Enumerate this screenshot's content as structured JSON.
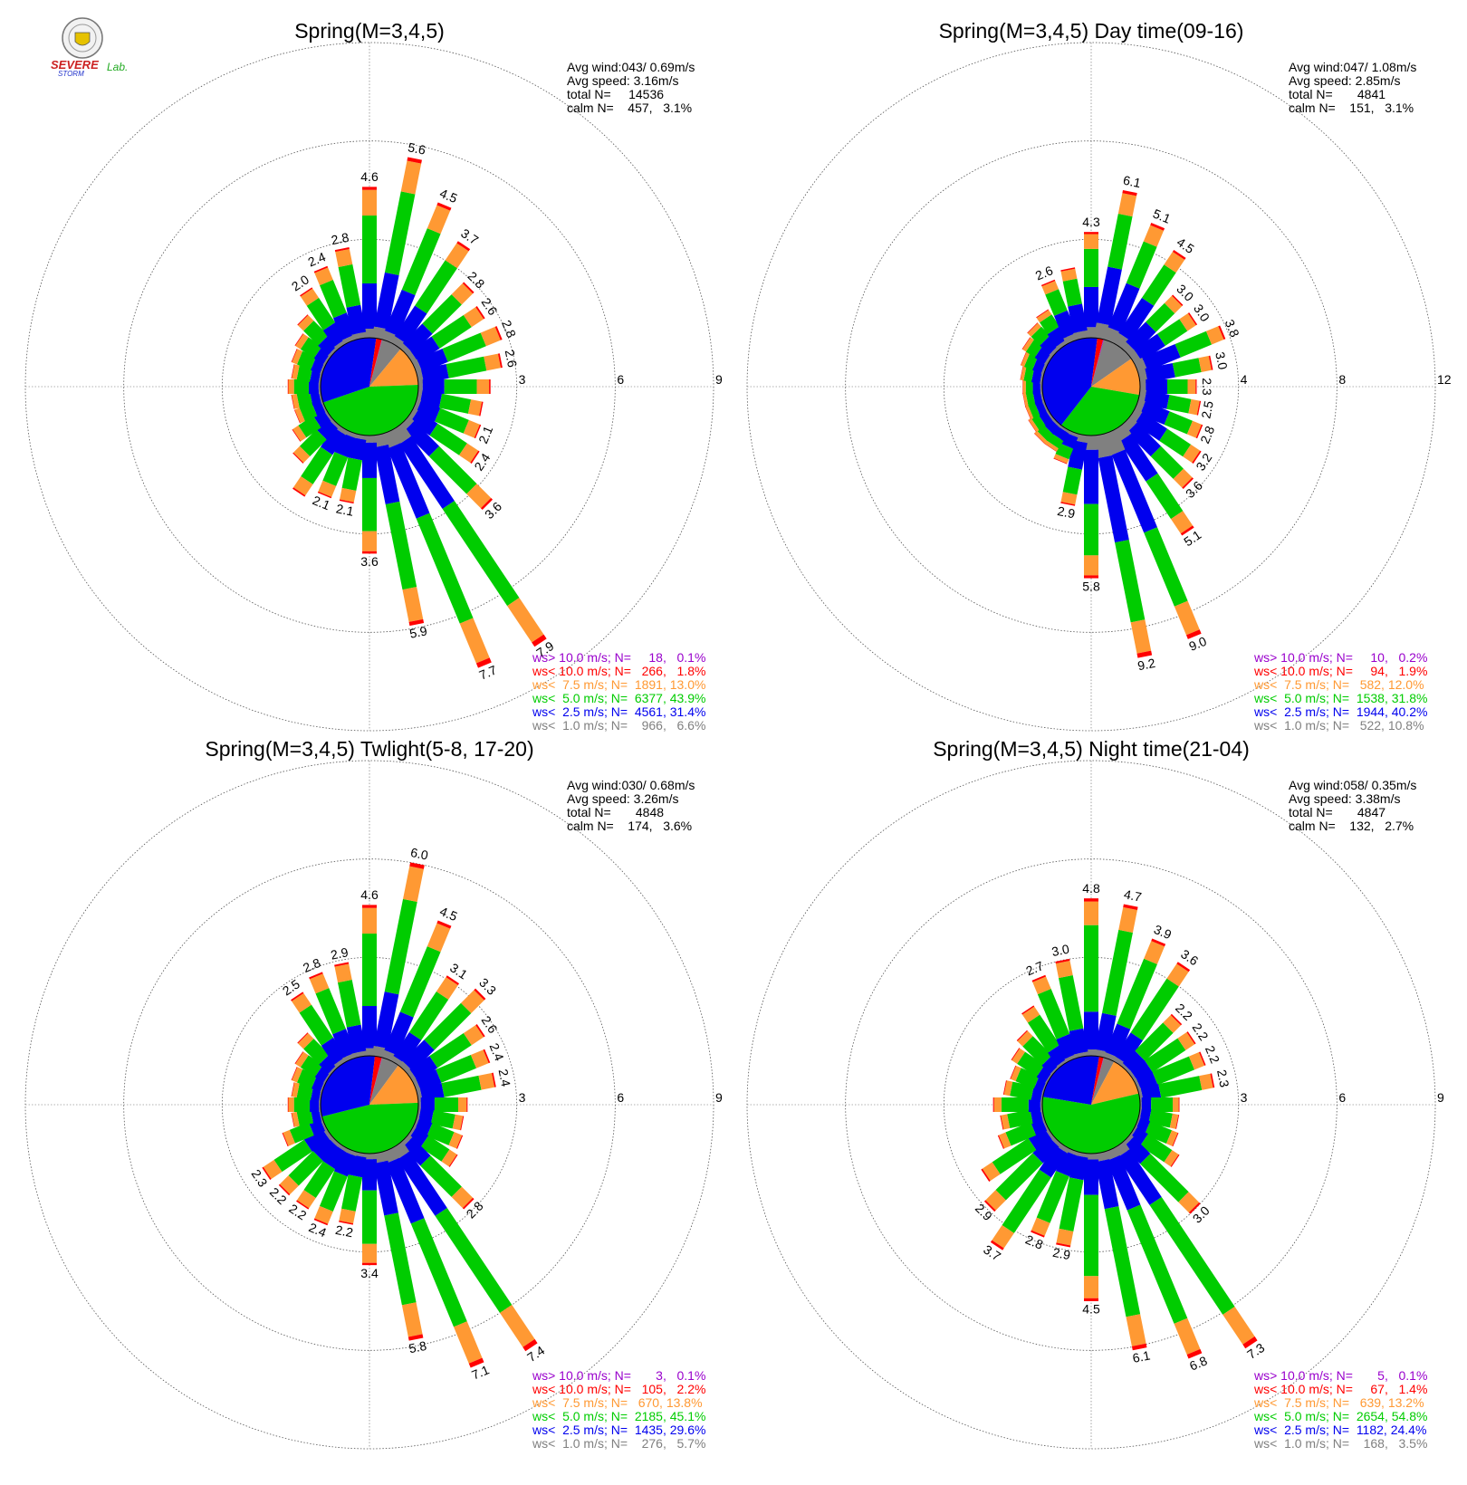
{
  "logo": {
    "text_main": "SEVERE",
    "text_sub": "STORM",
    "text_lab": "Lab."
  },
  "colors": {
    "gray": "#808080",
    "blue": "#0000ee",
    "green": "#00cc00",
    "orange": "#ff9933",
    "red": "#ff0000",
    "purple": "#9900cc"
  },
  "chart_data": [
    {
      "type": "wind-rose",
      "title": "Spring(M=3,4,5)",
      "stats": [
        "Avg wind:043/ 0.69m/s",
        "Avg speed: 3.16m/s",
        "total N=     14536",
        "calm N=    457,   3.1%"
      ],
      "rmax": 9,
      "ring_labels": [
        "3",
        "6",
        "9"
      ],
      "dir_labels": [
        "4.6",
        "5.6",
        "4.5",
        "3.7",
        "2.8",
        "2.6",
        "2.8",
        "2.6",
        "",
        "",
        "2.1",
        "2.4",
        "3.6",
        "7.9",
        "7.7",
        "5.9",
        "3.6",
        "2.1",
        "2.1",
        "",
        "",
        "",
        "",
        "",
        "",
        "",
        "",
        "",
        "",
        "2.0",
        "2.4",
        "2.8"
      ],
      "directions": [
        0,
        11.25,
        22.5,
        33.75,
        45,
        56.25,
        67.5,
        78.75,
        90,
        101.25,
        112.5,
        123.75,
        135,
        146.25,
        157.5,
        168.75,
        180,
        191.25,
        202.5,
        213.75,
        225,
        236.25,
        247.5,
        258.75,
        270,
        281.25,
        292.5,
        303.75,
        315,
        326.25,
        337.5,
        348.75
      ],
      "totals": [
        4.6,
        5.6,
        4.5,
        3.7,
        2.8,
        2.6,
        2.8,
        2.6,
        2.2,
        2.0,
        2.1,
        2.4,
        3.6,
        7.9,
        7.7,
        5.9,
        3.6,
        2.1,
        2.1,
        2.4,
        1.6,
        1.2,
        0.9,
        0.9,
        1.0,
        0.9,
        1.0,
        1.1,
        1.4,
        2.0,
        2.4,
        2.8
      ],
      "legend": [
        {
          "text": "ws> 10.0 m/s; N=     18,   0.1%",
          "color": "purple"
        },
        {
          "text": "ws< 10.0 m/s; N=   266,   1.8%",
          "color": "red"
        },
        {
          "text": "ws<  7.5 m/s; N=  1891, 13.0%",
          "color": "orange"
        },
        {
          "text": "ws<  5.0 m/s; N=  6377, 43.9%",
          "color": "green"
        },
        {
          "text": "ws<  2.5 m/s; N=  4561, 31.4%",
          "color": "blue"
        },
        {
          "text": "ws<  1.0 m/s; N=    966,   6.6%",
          "color": "gray"
        }
      ],
      "pie": [
        6.6,
        13.0,
        43.9,
        31.4,
        1.8,
        0.1
      ]
    },
    {
      "type": "wind-rose",
      "title": "Spring(M=3,4,5) Day time(09-16)",
      "stats": [
        "Avg wind:047/ 1.08m/s",
        "Avg speed: 2.85m/s",
        "total N=       4841",
        "calm N=    151,   3.1%"
      ],
      "rmax": 12,
      "ring_labels": [
        "4",
        "8",
        "12"
      ],
      "dir_labels": [
        "4.3",
        "6.1",
        "5.1",
        "4.5",
        "3.0",
        "3.0",
        "3.8",
        "3.0",
        "2.3",
        "2.5",
        "2.8",
        "3.2",
        "3.6",
        "5.1",
        "9.0",
        "9.2",
        "5.8",
        "2.9",
        "",
        "",
        "",
        "",
        "",
        "",
        "",
        "",
        "",
        "",
        "",
        "",
        "2.6",
        ""
      ],
      "directions": [
        0,
        11.25,
        22.5,
        33.75,
        45,
        56.25,
        67.5,
        78.75,
        90,
        101.25,
        112.5,
        123.75,
        135,
        146.25,
        157.5,
        168.75,
        180,
        191.25,
        202.5,
        213.75,
        225,
        236.25,
        247.5,
        258.75,
        270,
        281.25,
        292.5,
        303.75,
        315,
        326.25,
        337.5,
        348.75
      ],
      "totals": [
        4.3,
        6.1,
        5.1,
        4.5,
        3.0,
        3.0,
        3.8,
        3.0,
        2.3,
        2.5,
        2.8,
        3.2,
        3.6,
        5.1,
        9.0,
        9.2,
        5.8,
        2.9,
        1.3,
        1.0,
        1.0,
        0.9,
        0.8,
        0.8,
        0.8,
        0.9,
        1.0,
        1.2,
        1.4,
        1.6,
        2.6,
        2.9
      ],
      "legend": [
        {
          "text": "ws> 10.0 m/s; N=     10,   0.2%",
          "color": "purple"
        },
        {
          "text": "ws< 10.0 m/s; N=     94,   1.9%",
          "color": "red"
        },
        {
          "text": "ws<  7.5 m/s; N=   582, 12.0%",
          "color": "orange"
        },
        {
          "text": "ws<  5.0 m/s; N=  1538, 31.8%",
          "color": "green"
        },
        {
          "text": "ws<  2.5 m/s; N=  1944, 40.2%",
          "color": "blue"
        },
        {
          "text": "ws<  1.0 m/s; N=   522, 10.8%",
          "color": "gray"
        }
      ],
      "pie": [
        10.8,
        12.0,
        31.8,
        40.2,
        1.9,
        0.2
      ]
    },
    {
      "type": "wind-rose",
      "title": "Spring(M=3,4,5) Twlight(5-8, 17-20)",
      "stats": [
        "Avg wind:030/ 0.68m/s",
        "Avg speed: 3.26m/s",
        "total N=       4848",
        "calm N=    174,   3.6%"
      ],
      "rmax": 9,
      "ring_labels": [
        "3",
        "6",
        "9"
      ],
      "dir_labels": [
        "4.6",
        "6.0",
        "4.5",
        "3.1",
        "3.3",
        "2.6",
        "2.4",
        "2.4",
        "",
        "",
        "",
        "",
        "2.8",
        "7.4",
        "7.1",
        "5.8",
        "3.4",
        "2.2",
        "2.4",
        "2.2",
        "2.2",
        "2.3",
        "",
        "",
        "",
        "",
        "",
        "",
        "",
        "2.5",
        "2.8",
        "2.9"
      ],
      "directions": [
        0,
        11.25,
        22.5,
        33.75,
        45,
        56.25,
        67.5,
        78.75,
        90,
        101.25,
        112.5,
        123.75,
        135,
        146.25,
        157.5,
        168.75,
        180,
        191.25,
        202.5,
        213.75,
        225,
        236.25,
        247.5,
        258.75,
        270,
        281.25,
        292.5,
        303.75,
        315,
        326.25,
        337.5,
        348.75
      ],
      "totals": [
        4.6,
        6.0,
        4.5,
        3.1,
        3.3,
        2.6,
        2.4,
        2.4,
        1.5,
        1.4,
        1.5,
        1.6,
        2.8,
        7.4,
        7.1,
        5.8,
        3.4,
        2.2,
        2.4,
        2.2,
        2.2,
        2.3,
        1.3,
        0.9,
        1.0,
        0.9,
        1.0,
        1.1,
        1.4,
        2.5,
        2.8,
        2.9
      ],
      "legend": [
        {
          "text": "ws> 10.0 m/s; N=       3,   0.1%",
          "color": "purple"
        },
        {
          "text": "ws< 10.0 m/s; N=   105,   2.2%",
          "color": "red"
        },
        {
          "text": "ws<  7.5 m/s; N=   670, 13.8%",
          "color": "orange"
        },
        {
          "text": "ws<  5.0 m/s; N=  2185, 45.1%",
          "color": "green"
        },
        {
          "text": "ws<  2.5 m/s; N=  1435, 29.6%",
          "color": "blue"
        },
        {
          "text": "ws<  1.0 m/s; N=    276,   5.7%",
          "color": "gray"
        }
      ],
      "pie": [
        5.7,
        13.8,
        45.1,
        29.6,
        2.2,
        0.1
      ]
    },
    {
      "type": "wind-rose",
      "title": "Spring(M=3,4,5) Night time(21-04)",
      "stats": [
        "Avg wind:058/ 0.35m/s",
        "Avg speed: 3.38m/s",
        "total N=       4847",
        "calm N=    132,   2.7%"
      ],
      "rmax": 9,
      "ring_labels": [
        "3",
        "6",
        "9"
      ],
      "dir_labels": [
        "4.8",
        "4.7",
        "3.9",
        "3.6",
        "2.2",
        "2.2",
        "2.2",
        "2.3",
        "",
        "",
        "",
        "",
        "3.0",
        "7.3",
        "6.8",
        "6.1",
        "4.5",
        "2.9",
        "2.8",
        "3.7",
        "2.9",
        "",
        "",
        "",
        "",
        "",
        "",
        "",
        "",
        "",
        "2.7",
        "3.0"
      ],
      "directions": [
        0,
        11.25,
        22.5,
        33.75,
        45,
        56.25,
        67.5,
        78.75,
        90,
        101.25,
        112.5,
        123.75,
        135,
        146.25,
        157.5,
        168.75,
        180,
        191.25,
        202.5,
        213.75,
        225,
        236.25,
        247.5,
        258.75,
        270,
        281.25,
        292.5,
        303.75,
        315,
        326.25,
        337.5,
        348.75
      ],
      "totals": [
        4.8,
        4.7,
        3.9,
        3.6,
        2.2,
        2.2,
        2.2,
        2.3,
        1.2,
        1.2,
        1.3,
        1.6,
        3.0,
        7.3,
        6.8,
        6.1,
        4.5,
        2.9,
        2.8,
        3.7,
        2.9,
        2.4,
        1.5,
        1.3,
        1.5,
        1.2,
        1.1,
        1.3,
        1.5,
        2.0,
        2.7,
        3.0
      ],
      "legend": [
        {
          "text": "ws> 10.0 m/s; N=       5,   0.1%",
          "color": "purple"
        },
        {
          "text": "ws< 10.0 m/s; N=     67,   1.4%",
          "color": "red"
        },
        {
          "text": "ws<  7.5 m/s; N=   639, 13.2%",
          "color": "orange"
        },
        {
          "text": "ws<  5.0 m/s; N=  2654, 54.8%",
          "color": "green"
        },
        {
          "text": "ws<  2.5 m/s; N=  1182, 24.4%",
          "color": "blue"
        },
        {
          "text": "ws<  1.0 m/s; N=    168,   3.5%",
          "color": "gray"
        }
      ],
      "pie": [
        3.5,
        13.2,
        54.8,
        24.4,
        1.4,
        0.1
      ]
    }
  ]
}
